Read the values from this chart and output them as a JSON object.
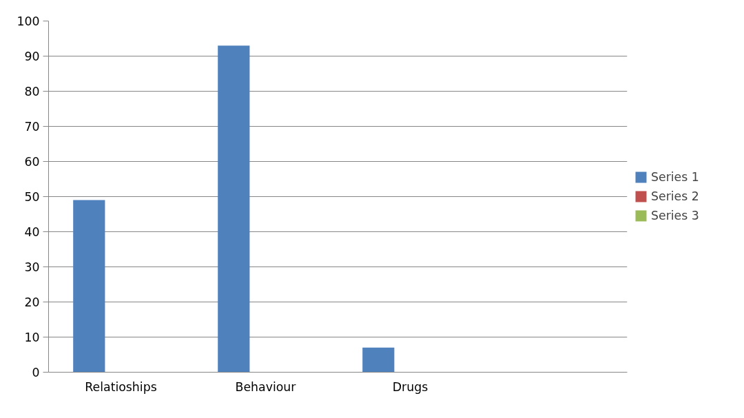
{
  "chart_data": {
    "type": "bar",
    "categories": [
      "Relatioships",
      "Behaviour",
      "Drugs",
      null
    ],
    "series": [
      {
        "name": "Series 1",
        "color": "#4f81bd",
        "values": [
          49,
          93,
          7,
          null
        ]
      },
      {
        "name": "Series 2",
        "color": "#c0504d",
        "values": [
          0,
          0,
          0,
          0
        ]
      },
      {
        "name": "Series 3",
        "color": "#9bbb59",
        "values": [
          0,
          0,
          0,
          0
        ]
      }
    ],
    "ylim": [
      0,
      100
    ],
    "yticks": [
      0,
      10,
      20,
      30,
      40,
      50,
      60,
      70,
      80,
      90,
      100
    ],
    "grid": "y",
    "legend": "right"
  }
}
